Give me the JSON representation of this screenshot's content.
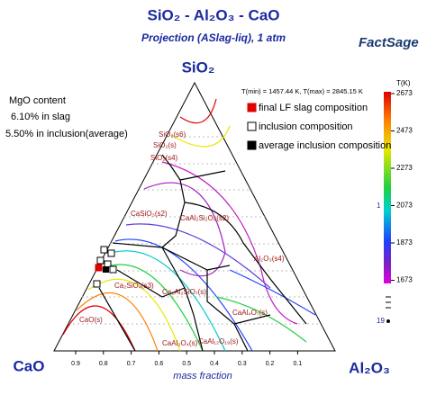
{
  "header": {
    "title": "SiO₂ - Al₂O₃ - CaO",
    "subtitle": "Projection (ASlag-liq),  1 atm",
    "logo": "FactSage"
  },
  "corners": {
    "top": "SiO₂",
    "left": "CaO",
    "right": "Al₂O₃"
  },
  "notes": [
    "MgO content",
    "6.10% in slag",
    "5.50% in inclusion(average)"
  ],
  "legend": {
    "range": "T(min) = 1457.44 K, T(max) = 2845.15 K",
    "items": [
      "final LF slag composition",
      "inclusion composition",
      "average inclusion composition"
    ]
  },
  "colorbar": {
    "title": "T(K)",
    "labels": [
      "2673",
      "2473",
      "2273",
      "2073",
      "1873",
      "1673"
    ],
    "markers": [
      "1",
      "19"
    ]
  },
  "axis": {
    "ticks": [
      "0.9",
      "0.8",
      "0.7",
      "0.6",
      "0.5",
      "0.4",
      "0.3",
      "0.2",
      "0.1"
    ],
    "label": "mass fraction"
  },
  "phases": [
    "SiO₂(s6)",
    "SiO₂(s4)",
    "SiO₂(s)",
    "CaSiO₃(s2)",
    "CaAl₂Si₂O₈(s2)",
    "Al₂O₃(s4)",
    "Ca₂SiO₄(s3)",
    "Ca₂Al₂SiO₇(s)",
    "CaO(s)",
    "CaAl₄O₇(s)",
    "CaAl₂O₄(s)",
    "CaAl₁₂O₁₉(s)"
  ]
}
